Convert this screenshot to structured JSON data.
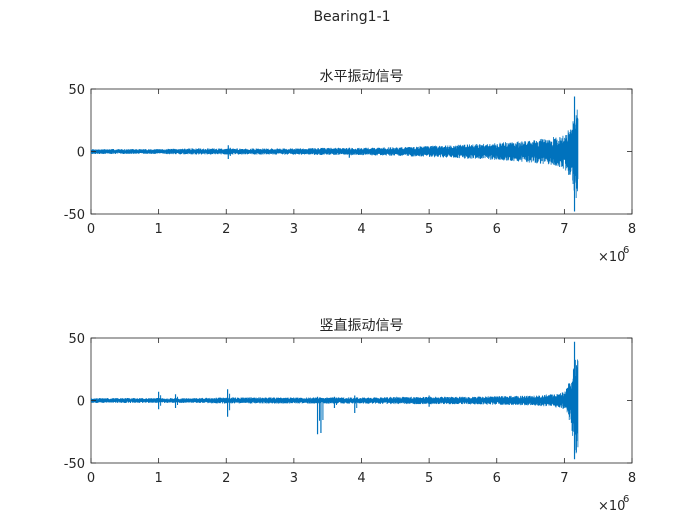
{
  "figure": {
    "title": "Bearing1-1"
  },
  "chart_data": [
    {
      "type": "line",
      "title": "水平振动信号",
      "xlabel": "",
      "ylabel": "",
      "xlim": [
        0,
        8000000
      ],
      "ylim": [
        -50,
        50
      ],
      "x_ticks": [
        "0",
        "1",
        "2",
        "3",
        "4",
        "5",
        "6",
        "7",
        "8"
      ],
      "y_ticks": [
        "50",
        "0",
        "-50"
      ],
      "x_exponent_label": "×10",
      "x_exponent_power": "6",
      "grid": false,
      "series_color": "#0072BD",
      "series": [
        {
          "name": "",
          "envelope": {
            "x": [
              0,
              500000,
              1000000,
              1500000,
              2000000,
              2500000,
              3000000,
              3500000,
              4000000,
              4500000,
              5000000,
              5500000,
              6000000,
              6500000,
              6800000,
              7000000,
              7100000,
              7150000,
              7200000
            ],
            "upper": [
              2,
              2,
              2,
              2.5,
              2.5,
              2.5,
              2.5,
              3,
              3,
              3.5,
              4.5,
              5.5,
              7,
              9,
              11,
              14,
              20,
              30,
              44
            ],
            "lower": [
              -2,
              -2,
              -2,
              -2.5,
              -2.5,
              -2.5,
              -2.5,
              -3,
              -3,
              -3.5,
              -4.5,
              -5.5,
              -7,
              -9,
              -11,
              -14,
              -22,
              -38,
              -48
            ]
          },
          "spikes": [
            {
              "x": 2030000,
              "max": 5,
              "min": -6
            },
            {
              "x": 3820000,
              "max": 3,
              "min": -5
            },
            {
              "x": 7150000,
              "max": 44,
              "min": -48
            }
          ]
        }
      ]
    },
    {
      "type": "line",
      "title": "竖直振动信号",
      "xlabel": "",
      "ylabel": "",
      "xlim": [
        0,
        8000000
      ],
      "ylim": [
        -50,
        50
      ],
      "x_ticks": [
        "0",
        "1",
        "2",
        "3",
        "4",
        "5",
        "6",
        "7",
        "8"
      ],
      "y_ticks": [
        "50",
        "0",
        "-50"
      ],
      "x_exponent_label": "×10",
      "x_exponent_power": "6",
      "grid": false,
      "series_color": "#0072BD",
      "series": [
        {
          "name": "",
          "envelope": {
            "x": [
              0,
              500000,
              1000000,
              1500000,
              2000000,
              2500000,
              3000000,
              3500000,
              4000000,
              4500000,
              5000000,
              5500000,
              6000000,
              6500000,
              6800000,
              7000000,
              7100000,
              7150000,
              7200000
            ],
            "upper": [
              2,
              2,
              2,
              2,
              2.5,
              2.5,
              2.5,
              2.5,
              2.5,
              3,
              3,
              3,
              3.5,
              4,
              5,
              7,
              18,
              35,
              47
            ],
            "lower": [
              -2,
              -2,
              -2,
              -2,
              -2.5,
              -2.5,
              -2.5,
              -2.5,
              -2.5,
              -3,
              -3,
              -3,
              -3.5,
              -4,
              -5,
              -7,
              -20,
              -40,
              -47
            ]
          },
          "spikes": [
            {
              "x": 1000000,
              "max": 7,
              "min": -7
            },
            {
              "x": 1250000,
              "max": 5,
              "min": -6
            },
            {
              "x": 2020000,
              "max": 9,
              "min": -13
            },
            {
              "x": 3350000,
              "max": 3,
              "min": -27
            },
            {
              "x": 3400000,
              "max": 2,
              "min": -26
            },
            {
              "x": 3600000,
              "max": 3,
              "min": -6
            },
            {
              "x": 3900000,
              "max": 4,
              "min": -10
            },
            {
              "x": 5000000,
              "max": 4,
              "min": -5
            },
            {
              "x": 7150000,
              "max": 47,
              "min": -47
            }
          ]
        }
      ]
    }
  ]
}
